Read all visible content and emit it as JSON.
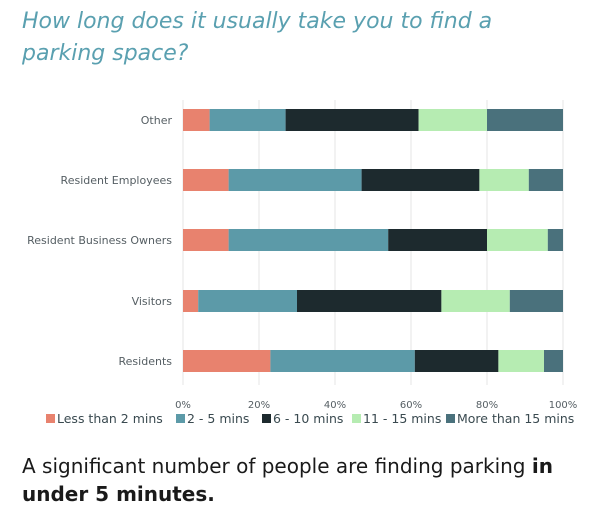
{
  "title": "How long does it usually take you to find a parking space?",
  "caption": {
    "normal": "A significant number of people are finding parking ",
    "bold": "in under 5 minutes."
  },
  "chart_data": {
    "type": "bar",
    "orientation": "horizontal",
    "stacked": true,
    "categories": [
      "Other",
      "Resident Employees",
      "Resident Business Owners",
      "Visitors",
      "Residents"
    ],
    "series": [
      {
        "name": "Less than 2 mins",
        "color": "#e8826e",
        "values": [
          7,
          12,
          12,
          4,
          23
        ]
      },
      {
        "name": "2 - 5 mins",
        "color": "#5c9aa8",
        "values": [
          20,
          35,
          42,
          26,
          38
        ]
      },
      {
        "name": "6 - 10 mins",
        "color": "#1d2a2e",
        "values": [
          35,
          31,
          26,
          38,
          22
        ]
      },
      {
        "name": "11 - 15 mins",
        "color": "#b6ecb2",
        "values": [
          18,
          13,
          16,
          18,
          12
        ]
      },
      {
        "name": "More than 15 mins",
        "color": "#4a717c",
        "values": [
          20,
          9,
          4,
          14,
          5
        ]
      }
    ],
    "xlim": [
      0,
      100
    ],
    "x_ticks": [
      "0%",
      "20%",
      "40%",
      "60%",
      "80%",
      "100%"
    ],
    "grid": true,
    "legend_position": "bottom"
  }
}
